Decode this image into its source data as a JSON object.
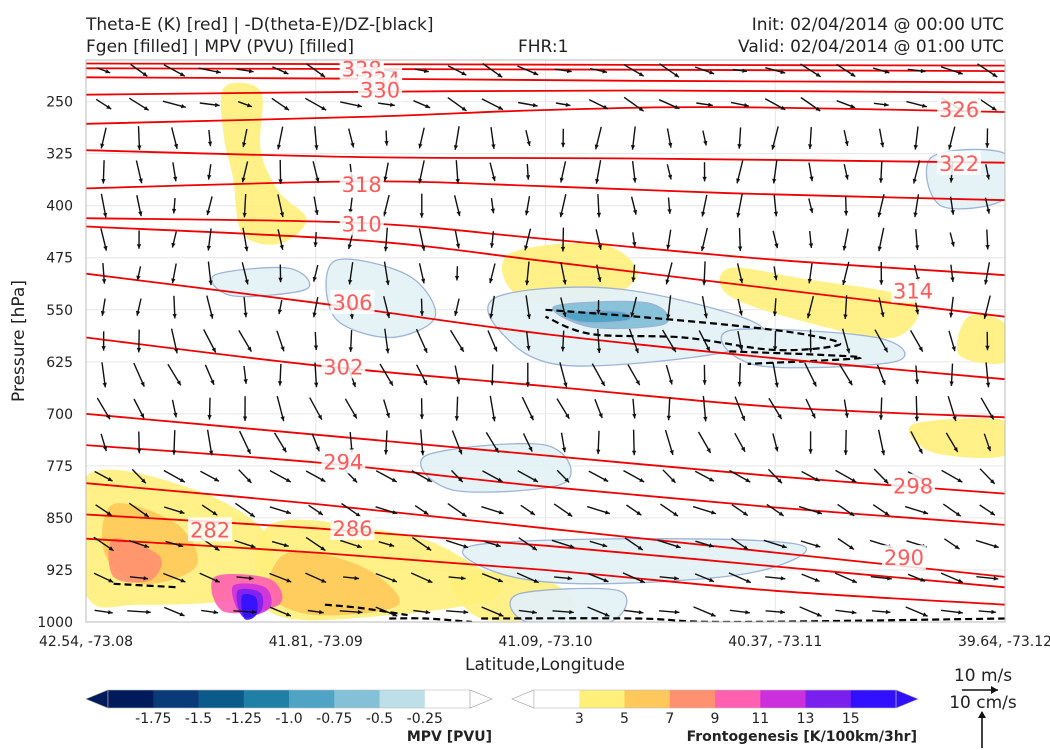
{
  "header": {
    "title_line1": "Theta-E (K) [red] | -D(theta-E)/DZ-[black]",
    "title_line2": "Fgen [filled] | MPV (PVU) [filled]",
    "fhr": "FHR:1",
    "init": "Init: 02/04/2014 @ 00:00 UTC",
    "valid": "Valid: 02/04/2014 @ 01:00 UTC"
  },
  "colors": {
    "theta_e": "#ee0000",
    "ddz": "#000000",
    "mpv_outline": "#9ab0d4",
    "fgen": [
      "#fff07a",
      "#ffc85a",
      "#ff9070",
      "#ff60b0",
      "#cc30dd",
      "#7a20ee",
      "#3010ff"
    ],
    "mpv": [
      "#001a5c",
      "#0a3a78",
      "#0a5a8a",
      "#1f7fa6",
      "#4fa3c4",
      "#84c1d8",
      "#bcdfe8"
    ]
  },
  "chart_data": {
    "type": "cross-section",
    "xlabel": "Latitude,Longitude",
    "ylabel": "Pressure [hPa]",
    "x_ticks": [
      "42.54, -73.08",
      "41.81, -73.09",
      "41.09, -73.10",
      "40.37, -73.11",
      "39.64, -73.12"
    ],
    "y_ticks": [
      250,
      325,
      400,
      475,
      550,
      625,
      700,
      775,
      850,
      925,
      1000
    ],
    "ylim": [
      1000,
      190
    ],
    "theta_e_contours": [
      {
        "value": 342,
        "label": "342",
        "points": [
          [
            0,
            195
          ],
          [
            0.3,
            196
          ],
          [
            0.6,
            197
          ],
          [
            1,
            198
          ]
        ]
      },
      {
        "value": 338,
        "label": "338",
        "points": [
          [
            0,
            202
          ],
          [
            0.3,
            203
          ],
          [
            0.6,
            204
          ],
          [
            1,
            206
          ]
        ]
      },
      {
        "value": 334,
        "label": "334",
        "points": [
          [
            0,
            215
          ],
          [
            0.3,
            217
          ],
          [
            0.6,
            220
          ],
          [
            1,
            222
          ]
        ]
      },
      {
        "value": 330,
        "label": "330",
        "points": [
          [
            0,
            240
          ],
          [
            0.3,
            236
          ],
          [
            0.6,
            234
          ],
          [
            1,
            237
          ]
        ]
      },
      {
        "value": 326,
        "label": "326",
        "points": [
          [
            0,
            282
          ],
          [
            0.3,
            272
          ],
          [
            0.5,
            262
          ],
          [
            0.7,
            258
          ],
          [
            1,
            265
          ]
        ]
      },
      {
        "value": 322,
        "label": "322",
        "points": [
          [
            0,
            320
          ],
          [
            0.3,
            330
          ],
          [
            0.6,
            332
          ],
          [
            1,
            338
          ]
        ]
      },
      {
        "value": 318,
        "label": "318",
        "points": [
          [
            0,
            375
          ],
          [
            0.3,
            365
          ],
          [
            0.5,
            372
          ],
          [
            0.7,
            382
          ],
          [
            1,
            392
          ]
        ]
      },
      {
        "value": 310,
        "label": "310",
        "points": [
          [
            0,
            418
          ],
          [
            0.3,
            425
          ],
          [
            0.5,
            448
          ],
          [
            0.75,
            478
          ],
          [
            1,
            500
          ]
        ]
      },
      {
        "value": 314,
        "label": "314",
        "points": [
          [
            0,
            430
          ],
          [
            0.3,
            450
          ],
          [
            0.5,
            480
          ],
          [
            0.75,
            520
          ],
          [
            1,
            560
          ]
        ]
      },
      {
        "value": 306,
        "label": "306",
        "points": [
          [
            0,
            498
          ],
          [
            0.25,
            540
          ],
          [
            0.5,
            585
          ],
          [
            0.75,
            620
          ],
          [
            1,
            650
          ]
        ]
      },
      {
        "value": 302,
        "label": "302",
        "points": [
          [
            0,
            590
          ],
          [
            0.25,
            630
          ],
          [
            0.5,
            660
          ],
          [
            0.75,
            690
          ],
          [
            1,
            705
          ]
        ]
      },
      {
        "value": 298,
        "label": "298",
        "points": [
          [
            0,
            700
          ],
          [
            0.25,
            730
          ],
          [
            0.5,
            760
          ],
          [
            0.75,
            790
          ],
          [
            1,
            815
          ]
        ]
      },
      {
        "value": 294,
        "label": "294",
        "points": [
          [
            0,
            745
          ],
          [
            0.25,
            770
          ],
          [
            0.5,
            805
          ],
          [
            0.75,
            835
          ],
          [
            1,
            860
          ]
        ]
      },
      {
        "value": 290,
        "label": "290",
        "points": [
          [
            0,
            800
          ],
          [
            0.25,
            830
          ],
          [
            0.5,
            865
          ],
          [
            0.75,
            900
          ],
          [
            1,
            935
          ]
        ]
      },
      {
        "value": 286,
        "label": "286",
        "points": [
          [
            0,
            845
          ],
          [
            0.25,
            865
          ],
          [
            0.5,
            890
          ],
          [
            0.75,
            920
          ],
          [
            1,
            950
          ]
        ]
      },
      {
        "value": 282,
        "label": "282",
        "points": [
          [
            0,
            880
          ],
          [
            0.25,
            900
          ],
          [
            0.5,
            925
          ],
          [
            0.75,
            955
          ],
          [
            1,
            975
          ]
        ]
      }
    ],
    "contour_labels": [
      {
        "text": "342",
        "x": 0.3,
        "p": 197
      },
      {
        "text": "338",
        "x": 0.3,
        "p": 204
      },
      {
        "text": "334",
        "x": 0.32,
        "p": 219
      },
      {
        "text": "330",
        "x": 0.32,
        "p": 234
      },
      {
        "text": "326",
        "x": 0.95,
        "p": 262
      },
      {
        "text": "322",
        "x": 0.95,
        "p": 340
      },
      {
        "text": "318",
        "x": 0.3,
        "p": 370
      },
      {
        "text": "310",
        "x": 0.3,
        "p": 427
      },
      {
        "text": "314",
        "x": 0.9,
        "p": 524
      },
      {
        "text": "306",
        "x": 0.29,
        "p": 540
      },
      {
        "text": "302",
        "x": 0.28,
        "p": 633
      },
      {
        "text": "294",
        "x": 0.28,
        "p": 770
      },
      {
        "text": "298",
        "x": 0.9,
        "p": 805
      },
      {
        "text": "286",
        "x": 0.29,
        "p": 866
      },
      {
        "text": "282",
        "x": 0.135,
        "p": 868
      },
      {
        "text": "290",
        "x": 0.89,
        "p": 908
      }
    ],
    "fgen_regions": [
      {
        "level": 3,
        "points": [
          [
            0.15,
            230
          ],
          [
            0.19,
            235
          ],
          [
            0.19,
            320
          ],
          [
            0.21,
            380
          ],
          [
            0.24,
            420
          ],
          [
            0.21,
            455
          ],
          [
            0.17,
            440
          ],
          [
            0.16,
            360
          ],
          [
            0.15,
            300
          ]
        ]
      },
      {
        "level": 3,
        "points": [
          [
            0.46,
            470
          ],
          [
            0.56,
            455
          ],
          [
            0.6,
            500
          ],
          [
            0.55,
            540
          ],
          [
            0.47,
            530
          ]
        ]
      },
      {
        "level": 3,
        "points": [
          [
            0.7,
            490
          ],
          [
            0.78,
            505
          ],
          [
            0.9,
            535
          ],
          [
            0.88,
            590
          ],
          [
            0.79,
            570
          ],
          [
            0.7,
            530
          ]
        ]
      },
      {
        "level": 3,
        "points": [
          [
            0.96,
            560
          ],
          [
            1,
            570
          ],
          [
            1,
            625
          ],
          [
            0.95,
            615
          ]
        ]
      },
      {
        "level": 3,
        "points": [
          [
            0.9,
            715
          ],
          [
            1,
            710
          ],
          [
            1,
            760
          ],
          [
            0.92,
            755
          ]
        ]
      },
      {
        "level": 3,
        "points": [
          [
            0,
            790
          ],
          [
            0.12,
            810
          ],
          [
            0.2,
            880
          ],
          [
            0.18,
            960
          ],
          [
            0.06,
            975
          ],
          [
            0,
            960
          ]
        ]
      },
      {
        "level": 3,
        "points": [
          [
            0.2,
            860
          ],
          [
            0.33,
            870
          ],
          [
            0.4,
            900
          ],
          [
            0.45,
            960
          ],
          [
            0.33,
            990
          ],
          [
            0.2,
            985
          ]
        ]
      },
      {
        "level": 3,
        "points": [
          [
            0.4,
            930
          ],
          [
            0.5,
            940
          ],
          [
            0.53,
            985
          ],
          [
            0.43,
            995
          ]
        ]
      },
      {
        "level": 5,
        "points": [
          [
            0.03,
            830
          ],
          [
            0.1,
            860
          ],
          [
            0.12,
            920
          ],
          [
            0.06,
            945
          ],
          [
            0.02,
            900
          ]
        ]
      },
      {
        "level": 5,
        "points": [
          [
            0.22,
            900
          ],
          [
            0.3,
            920
          ],
          [
            0.34,
            975
          ],
          [
            0.25,
            990
          ],
          [
            0.2,
            960
          ]
        ]
      },
      {
        "level": 7,
        "points": [
          [
            0.03,
            880
          ],
          [
            0.08,
            905
          ],
          [
            0.07,
            940
          ],
          [
            0.03,
            935
          ]
        ]
      },
      {
        "level": 9,
        "points": [
          [
            0.14,
            935
          ],
          [
            0.2,
            938
          ],
          [
            0.21,
            975
          ],
          [
            0.15,
            985
          ]
        ]
      },
      {
        "level": 11,
        "points": [
          [
            0.16,
            948
          ],
          [
            0.195,
            950
          ],
          [
            0.2,
            980
          ],
          [
            0.17,
            990
          ]
        ]
      },
      {
        "level": 13,
        "points": [
          [
            0.165,
            955
          ],
          [
            0.19,
            958
          ],
          [
            0.19,
            985
          ],
          [
            0.17,
            992
          ]
        ]
      },
      {
        "level": 15,
        "points": [
          [
            0.17,
            962
          ],
          [
            0.185,
            965
          ],
          [
            0.185,
            990
          ],
          [
            0.172,
            995
          ]
        ]
      }
    ],
    "mpv_regions": [
      {
        "level": -0.25,
        "points": [
          [
            0.14,
            500
          ],
          [
            0.22,
            490
          ],
          [
            0.24,
            520
          ],
          [
            0.16,
            530
          ]
        ]
      },
      {
        "level": -0.25,
        "points": [
          [
            0.27,
            480
          ],
          [
            0.35,
            500
          ],
          [
            0.38,
            560
          ],
          [
            0.33,
            590
          ],
          [
            0.27,
            560
          ]
        ]
      },
      {
        "level": -0.25,
        "points": [
          [
            0.45,
            530
          ],
          [
            0.58,
            520
          ],
          [
            0.73,
            570
          ],
          [
            0.7,
            610
          ],
          [
            0.52,
            630
          ],
          [
            0.45,
            580
          ]
        ]
      },
      {
        "level": -0.25,
        "points": [
          [
            0.7,
            580
          ],
          [
            0.86,
            590
          ],
          [
            0.88,
            625
          ],
          [
            0.73,
            630
          ]
        ]
      },
      {
        "level": -0.25,
        "points": [
          [
            0.92,
            330
          ],
          [
            1,
            325
          ],
          [
            1,
            390
          ],
          [
            0.93,
            400
          ]
        ]
      },
      {
        "level": -0.25,
        "points": [
          [
            0.37,
            760
          ],
          [
            0.5,
            745
          ],
          [
            0.52,
            800
          ],
          [
            0.4,
            810
          ]
        ]
      },
      {
        "level": -0.25,
        "points": [
          [
            0.42,
            890
          ],
          [
            0.62,
            880
          ],
          [
            0.78,
            890
          ],
          [
            0.72,
            930
          ],
          [
            0.55,
            945
          ],
          [
            0.45,
            930
          ]
        ]
      },
      {
        "level": -0.25,
        "points": [
          [
            0.47,
            960
          ],
          [
            0.58,
            955
          ],
          [
            0.57,
            1000
          ],
          [
            0.48,
            1000
          ]
        ]
      },
      {
        "level": -0.5,
        "points": [
          [
            0.51,
            545
          ],
          [
            0.61,
            540
          ],
          [
            0.63,
            570
          ],
          [
            0.55,
            575
          ]
        ]
      },
      {
        "level": -0.75,
        "points": [
          [
            0.52,
            555
          ],
          [
            0.58,
            552
          ],
          [
            0.59,
            565
          ],
          [
            0.54,
            568
          ]
        ]
      }
    ],
    "ddz_lines": [
      {
        "points": [
          [
            0.5,
            550
          ],
          [
            0.6,
            560
          ],
          [
            0.7,
            572
          ],
          [
            0.78,
            585
          ],
          [
            0.82,
            600
          ],
          [
            0.75,
            608
          ],
          [
            0.65,
            590
          ],
          [
            0.55,
            585
          ],
          [
            0.5,
            560
          ]
        ]
      },
      {
        "points": [
          [
            0.7,
            610
          ],
          [
            0.8,
            615
          ],
          [
            0.84,
            620
          ],
          [
            0.72,
            628
          ]
        ]
      },
      {
        "points": [
          [
            0.03,
            945
          ],
          [
            0.1,
            950
          ]
        ]
      },
      {
        "points": [
          [
            0.26,
            975
          ],
          [
            0.3,
            980
          ],
          [
            0.35,
            990
          ]
        ]
      },
      {
        "points": [
          [
            0.33,
            995
          ],
          [
            0.37,
            995
          ],
          [
            0.42,
            1000
          ]
        ]
      },
      {
        "points": [
          [
            0.43,
            995
          ],
          [
            0.6,
            995
          ],
          [
            0.7,
            1000
          ],
          [
            1,
            995
          ]
        ]
      }
    ],
    "vector_reference": {
      "h_label": "10 m/s",
      "v_label": "10 cm/s"
    }
  },
  "colorbars": {
    "mpv": {
      "title": "MPV [PVU]",
      "ticks": [
        "-1.75",
        "-1.5",
        "-1.25",
        "-1.0",
        "-0.75",
        "-0.5",
        "-0.25"
      ]
    },
    "fgen": {
      "title": "Frontogenesis [K/100km/3hr]",
      "ticks": [
        "3",
        "5",
        "7",
        "9",
        "11",
        "13",
        "15"
      ]
    }
  }
}
